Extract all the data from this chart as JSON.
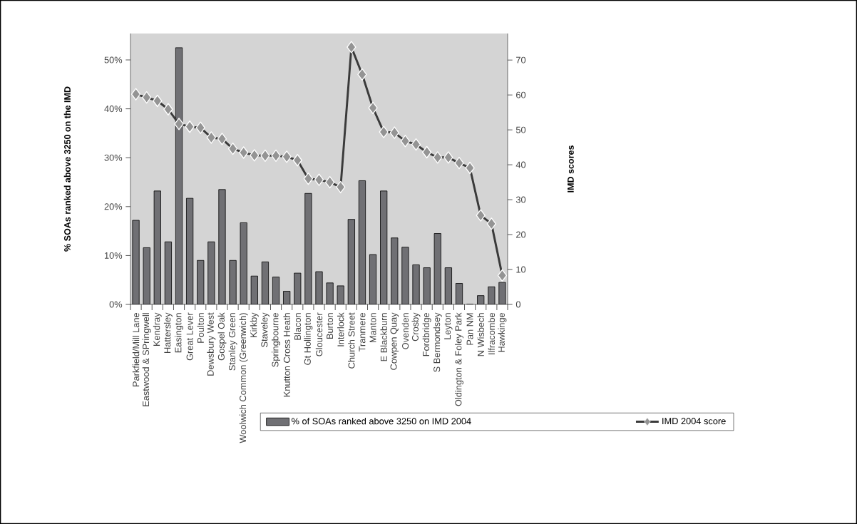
{
  "chart_data": {
    "type": "bar",
    "ylabel": "% SOAs ranked above 3250 on the IMD",
    "y2label": "IMD scores",
    "categories": [
      "Parkfield/Mill Lane",
      "Eastwood & SPringwell",
      "Kendray",
      "Hattersley",
      "Easington",
      "Great Lever",
      "Poulton",
      "Dewsbury West",
      "Gospel Oak",
      "Stanley Green",
      "Woolwich Common (Greenwich)",
      "Kirkby",
      "Staveley",
      "Springbourne",
      "Knutton Cross Heath",
      "Blacon",
      "Gt Hollington",
      "Gloucester",
      "Burton",
      "Interlock",
      "Church Street",
      "Tranmere",
      "Manton",
      "E Blackburn",
      "Cowpen Quay",
      "Ovenden",
      "Crosby",
      "Fordbridge",
      "S Bermondsey",
      "Leyton",
      "Oldington & Foley Park",
      "Pan NM",
      "N Wisbech",
      "Ilfracombe",
      "Hawkinge"
    ],
    "series": [
      {
        "name": "% of SOAs ranked above 3250 on IMD 2004",
        "color": "#707074",
        "values": [
          17.2,
          11.6,
          23.2,
          12.8,
          52.5,
          21.7,
          9.0,
          12.8,
          23.5,
          9.0,
          16.7,
          5.8,
          8.7,
          5.6,
          2.7,
          6.4,
          22.7,
          6.7,
          4.4,
          3.8,
          17.4,
          25.3,
          10.2,
          23.2,
          13.6,
          11.7,
          8.1,
          7.5,
          14.5,
          7.5,
          4.3,
          0,
          1.8,
          3.6,
          4.5
        ]
      },
      {
        "name": "IMD 2004 score",
        "type": "line",
        "axis": "y2",
        "color": "#3a3a3a",
        "marker": "diamond",
        "values": [
          60.2,
          59.3,
          58.3,
          55.9,
          51.7,
          50.9,
          50.6,
          47.8,
          47.4,
          44.6,
          43.5,
          42.7,
          42.6,
          42.6,
          42.3,
          41.3,
          36.0,
          35.7,
          35.0,
          33.6,
          73.7,
          65.9,
          56.3,
          49.4,
          49.2,
          46.8,
          45.8,
          43.6,
          42.1,
          42.1,
          40.5,
          39.1,
          25.5,
          23.1,
          8.3
        ]
      }
    ],
    "ylim": [
      0,
      55.4
    ],
    "yticks": [
      {
        "value": 0,
        "label": "0%"
      },
      {
        "value": 10,
        "label": "10%"
      },
      {
        "value": 20,
        "label": "20%"
      },
      {
        "value": 30,
        "label": "30%"
      },
      {
        "value": 40,
        "label": "40%"
      },
      {
        "value": 50,
        "label": "50%"
      }
    ],
    "y2lim": [
      0,
      77.6
    ],
    "y2ticks": [
      0,
      10,
      20,
      30,
      40,
      50,
      60,
      70
    ],
    "grid": false,
    "legend": "bottom"
  }
}
